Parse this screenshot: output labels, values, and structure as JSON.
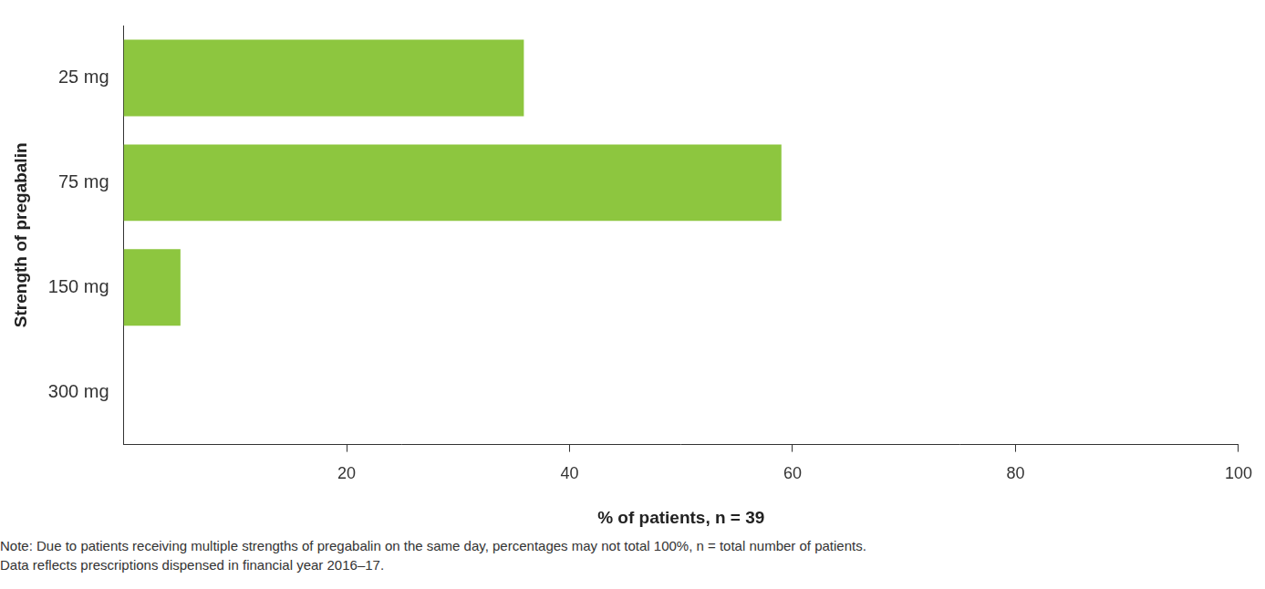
{
  "chart_data": {
    "type": "bar",
    "orientation": "horizontal",
    "categories": [
      "25 mg",
      "75 mg",
      "150 mg",
      "300 mg"
    ],
    "values": [
      35.9,
      59.0,
      5.1,
      0
    ],
    "color": "#8dc63f",
    "x_label": "% of patients, n = 39",
    "y_label": "Strength of pregabalin",
    "xlim": [
      0,
      100
    ],
    "xticks": [
      20,
      40,
      60,
      80,
      100
    ],
    "grid": false,
    "annotations": [
      "Note: Due to patients receiving multiple strengths of pregabalin on the same day, percentages may not total 100%, n = total number of patients.",
      "Data reflects prescriptions dispensed in financial year 2016–17."
    ]
  }
}
